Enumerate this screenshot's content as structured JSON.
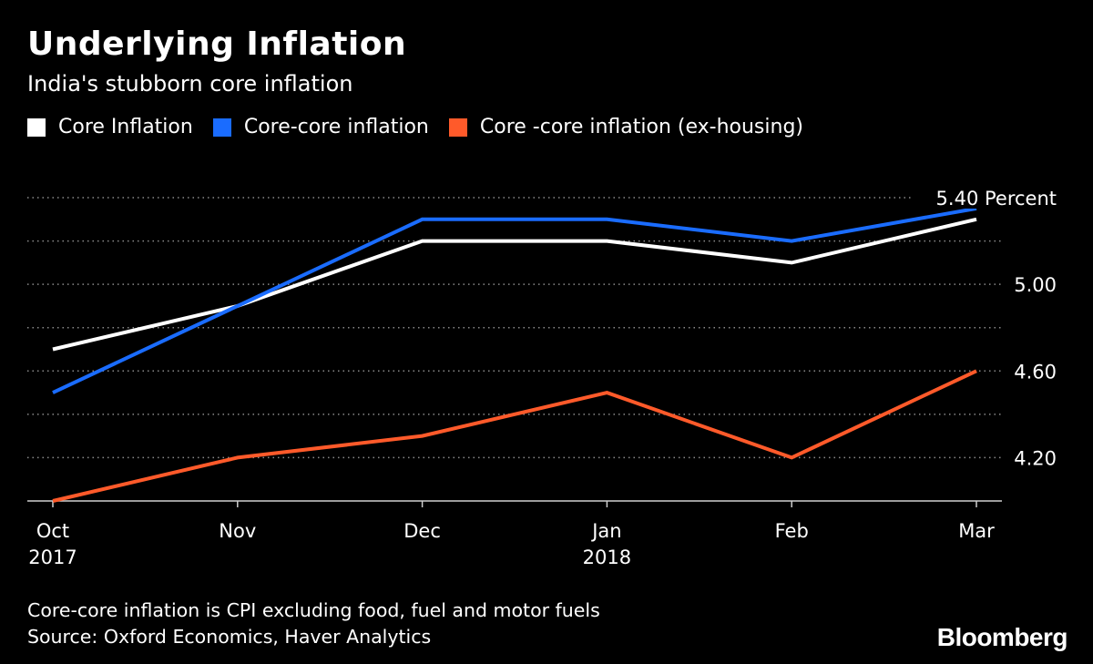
{
  "header": {
    "title": "Underlying Inflation",
    "subtitle": "India's stubborn core inflation"
  },
  "legend": [
    {
      "label": "Core Inflation",
      "color": "#ffffff"
    },
    {
      "label": "Core-core inflation",
      "color": "#1a6cff"
    },
    {
      "label": "Core -core inflation (ex-housing)",
      "color": "#ff5a2a"
    }
  ],
  "chart_data": {
    "type": "line",
    "categories": [
      "Oct",
      "Nov",
      "Dec",
      "Jan",
      "Feb",
      "Mar"
    ],
    "category_sublabels": [
      "2017",
      "",
      "",
      "2018",
      "",
      ""
    ],
    "series": [
      {
        "name": "Core Inflation",
        "color": "#ffffff",
        "values": [
          4.7,
          4.9,
          5.2,
          5.2,
          5.1,
          5.3
        ]
      },
      {
        "name": "Core-core inflation",
        "color": "#1a6cff",
        "values": [
          4.5,
          4.9,
          5.3,
          5.3,
          5.2,
          5.35
        ]
      },
      {
        "name": "Core -core inflation (ex-housing)",
        "color": "#ff5a2a",
        "values": [
          4.0,
          4.2,
          4.3,
          4.5,
          4.2,
          4.6
        ]
      }
    ],
    "ylim": [
      4.0,
      5.4
    ],
    "yticks": [
      4.2,
      4.6,
      5.0,
      5.4
    ],
    "ytick_labels": [
      "4.20",
      "4.60",
      "5.00",
      "5.40 Percent"
    ],
    "gridlines": [
      4.2,
      4.4,
      4.6,
      4.8,
      5.0,
      5.2,
      5.4
    ],
    "xlabel": "",
    "ylabel": "Percent"
  },
  "footer": {
    "note": "Core-core inflation is CPI excluding food, fuel and motor fuels",
    "source": "Source: Oxford Economics, Haver Analytics",
    "brand": "Bloomberg"
  }
}
